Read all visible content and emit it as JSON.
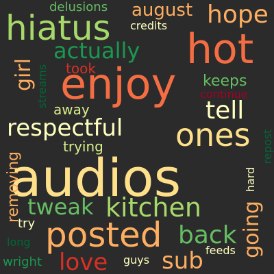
{
  "background": "#2b2b2b",
  "palette": {
    "cream": "#fee08b",
    "peach": "#fdae61",
    "orange": "#f46d43",
    "red": "#d73027",
    "crimson": "#a50026",
    "lightgreen": "#a6d96a",
    "green": "#66bd63",
    "darkgreen": "#1a9850",
    "forest": "#006837",
    "pale": "#d9ef8b"
  },
  "words": [
    {
      "text": "audios",
      "color": "#fee08b"
    },
    {
      "text": "enjoy",
      "color": "#f46d43"
    },
    {
      "text": "hot",
      "color": "#f46d43"
    },
    {
      "text": "hiatus",
      "color": "#a6d96a"
    },
    {
      "text": "posted",
      "color": "#fdae61"
    },
    {
      "text": "respectful",
      "color": "#ffffbf"
    },
    {
      "text": "ones",
      "color": "#fee08b"
    },
    {
      "text": "kitchen",
      "color": "#a6d96a"
    },
    {
      "text": "hope",
      "color": "#fdae61"
    },
    {
      "text": "back",
      "color": "#66bd63"
    },
    {
      "text": "love",
      "color": "#d73027"
    },
    {
      "text": "actually",
      "color": "#1a9850"
    },
    {
      "text": "tell",
      "color": "#ffffbf"
    },
    {
      "text": "tweak",
      "color": "#66bd63"
    },
    {
      "text": "sub",
      "color": "#fdae61"
    },
    {
      "text": "august",
      "color": "#fdae61"
    },
    {
      "text": "girl",
      "color": "#fdae61"
    },
    {
      "text": "going",
      "color": "#fdae61"
    },
    {
      "text": "away",
      "color": "#d9ef8b"
    },
    {
      "text": "took",
      "color": "#d73027"
    },
    {
      "text": "keeps",
      "color": "#66bd63"
    },
    {
      "text": "removing",
      "color": "#fdae61"
    },
    {
      "text": "trying",
      "color": "#d9ef8b"
    },
    {
      "text": "delusions",
      "color": "#66bd63"
    },
    {
      "text": "credits",
      "color": "#ffffbf"
    },
    {
      "text": "streams",
      "color": "#006837"
    },
    {
      "text": "continue",
      "color": "#a50026"
    },
    {
      "text": "repost",
      "color": "#006837"
    },
    {
      "text": "hard",
      "color": "#ffffbf"
    },
    {
      "text": "try",
      "color": "#ffffbf"
    },
    {
      "text": "long",
      "color": "#006837"
    },
    {
      "text": "feeds",
      "color": "#ffffbf"
    },
    {
      "text": "wright",
      "color": "#1a9850"
    },
    {
      "text": "guys",
      "color": "#ffffbf"
    }
  ]
}
